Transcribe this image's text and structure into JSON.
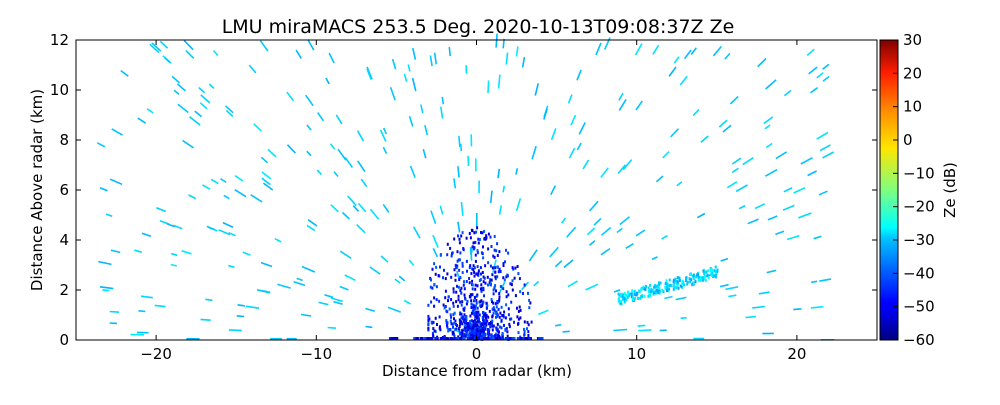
{
  "chart_data": {
    "type": "heatmap",
    "title": "LMU miraMACS 253.5 Deg. 2020-10-13T09:08:37Z  Ze",
    "xlabel": "Distance from radar (km)",
    "ylabel": "Distance Above radar  (km)",
    "xlim": [
      -25,
      25
    ],
    "ylim": [
      0,
      12
    ],
    "x_ticks": [
      "−20",
      "−10",
      "0",
      "10",
      "20"
    ],
    "x_tick_values": [
      -20,
      -10,
      0,
      10,
      20
    ],
    "y_ticks": [
      "0",
      "2",
      "4",
      "6",
      "8",
      "10",
      "12"
    ],
    "y_tick_values": [
      0,
      2,
      4,
      6,
      8,
      10,
      12
    ],
    "grid": false,
    "colorbar": {
      "label": "Ze (dB)",
      "colormap": "jet",
      "range": [
        -60,
        30
      ],
      "ticks": [
        "30",
        "20",
        "10",
        "0",
        "−10",
        "−20",
        "−30",
        "−40",
        "−50",
        "−60"
      ],
      "tick_values": [
        30,
        20,
        10,
        0,
        -10,
        -20,
        -30,
        -40,
        -50,
        -60
      ]
    },
    "echo_regions": [
      {
        "x_km": [
          -3,
          3.5
        ],
        "y_km": [
          0,
          4.5
        ],
        "ze_db": [
          -55,
          -40
        ],
        "pattern": "dense near-radar clutter"
      },
      {
        "x_km": [
          8.8,
          15
        ],
        "y_km": [
          1.6,
          2.7
        ],
        "ze_db": [
          -35,
          -25
        ],
        "pattern": "inclined echo band"
      },
      {
        "x_km": [
          -23.5,
          22
        ],
        "y_km": [
          0,
          12
        ],
        "ze_db": [
          -33,
          -28
        ],
        "pattern": "sparse radial speckles"
      }
    ]
  }
}
